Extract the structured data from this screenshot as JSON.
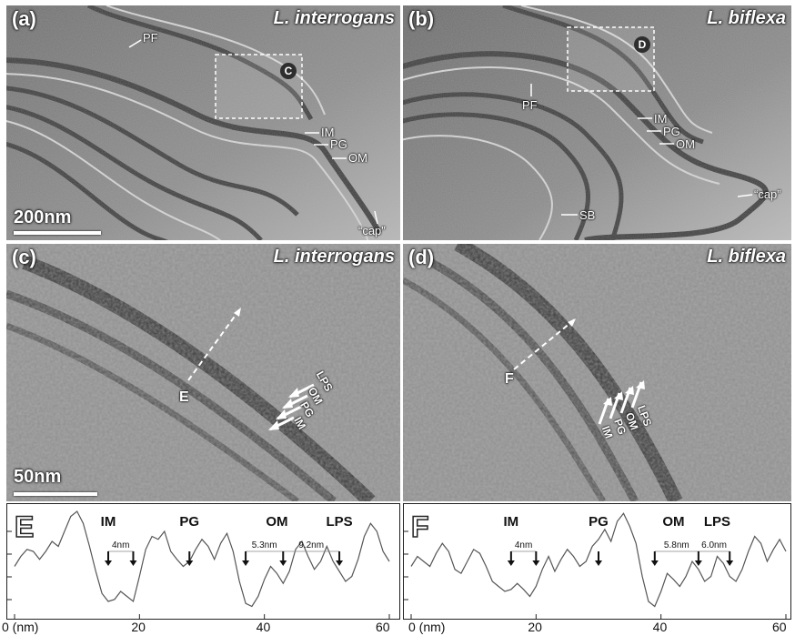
{
  "panels": {
    "a": {
      "label": "(a)",
      "species": "L. interrogans",
      "box_label": "C",
      "scale": "200nm",
      "annotations": {
        "pf": "PF",
        "im": "IM",
        "pg": "PG",
        "om": "OM",
        "cap": "“cap”"
      }
    },
    "b": {
      "label": "(b)",
      "species": "L. biflexa",
      "box_label": "D",
      "annotations": {
        "pf": "PF",
        "im": "IM",
        "pg": "PG",
        "om": "OM",
        "cap": "“cap”",
        "sb": "SB"
      }
    },
    "c": {
      "label": "(c)",
      "species": "L. interrogans",
      "scale": "50nm",
      "line_label": "E",
      "annotations": {
        "lps": "LPS",
        "om": "OM",
        "pg": "PG",
        "im": "IM"
      }
    },
    "d": {
      "label": "(d)",
      "species": "L. biflexa",
      "line_label": "F",
      "annotations": {
        "lps": "LPS",
        "om": "OM",
        "pg": "PG",
        "im": "IM"
      }
    }
  },
  "chart_data": [
    {
      "type": "line",
      "panel_letter": "E",
      "x_tick_labels": [
        "0 (nm)",
        "20",
        "40",
        "60"
      ],
      "xlim": [
        0,
        60
      ],
      "layer_labels": [
        "IM",
        "PG",
        "OM",
        "LPS"
      ],
      "layer_positions": [
        15,
        28,
        42,
        52
      ],
      "arrow_x": [
        15,
        19,
        28,
        37,
        43,
        52
      ],
      "distances": [
        {
          "label": "4nm",
          "from": 15,
          "to": 19
        },
        {
          "label": "5.3nm",
          "from": 37,
          "to": 43
        },
        {
          "label": "9.2nm",
          "from": 43,
          "to": 52
        }
      ],
      "x": [
        0,
        1,
        2,
        3,
        4,
        5,
        6,
        7,
        8,
        9,
        10,
        11,
        12,
        13,
        14,
        15,
        16,
        17,
        18,
        19,
        20,
        21,
        22,
        23,
        24,
        25,
        26,
        27,
        28,
        29,
        30,
        31,
        32,
        33,
        34,
        35,
        36,
        37,
        38,
        39,
        40,
        41,
        42,
        43,
        44,
        45,
        46,
        47,
        48,
        49,
        50,
        51,
        52,
        53,
        54,
        55,
        56,
        57,
        58,
        59,
        60
      ],
      "y": [
        0.45,
        0.55,
        0.62,
        0.6,
        0.52,
        0.6,
        0.7,
        0.65,
        0.8,
        0.95,
        1.0,
        0.88,
        0.65,
        0.4,
        0.18,
        0.1,
        0.12,
        0.2,
        0.15,
        0.1,
        0.35,
        0.62,
        0.75,
        0.72,
        0.8,
        0.6,
        0.52,
        0.45,
        0.5,
        0.62,
        0.72,
        0.65,
        0.52,
        0.68,
        0.78,
        0.6,
        0.3,
        0.08,
        0.05,
        0.15,
        0.32,
        0.45,
        0.38,
        0.28,
        0.4,
        0.62,
        0.7,
        0.55,
        0.42,
        0.5,
        0.65,
        0.5,
        0.4,
        0.3,
        0.35,
        0.52,
        0.75,
        0.88,
        0.8,
        0.6,
        0.5
      ]
    },
    {
      "type": "line",
      "panel_letter": "F",
      "x_tick_labels": [
        "0 (nm)",
        "20",
        "40",
        "60"
      ],
      "xlim": [
        0,
        60
      ],
      "layer_labels": [
        "IM",
        "PG",
        "OM",
        "LPS"
      ],
      "layer_positions": [
        16,
        30,
        42,
        49
      ],
      "arrow_x": [
        16,
        20,
        30,
        39,
        46,
        51
      ],
      "distances": [
        {
          "label": "4nm",
          "from": 16,
          "to": 20
        },
        {
          "label": "5.8nm",
          "from": 39,
          "to": 46
        },
        {
          "label": "6.0nm",
          "from": 46,
          "to": 51
        }
      ],
      "x": [
        0,
        1,
        2,
        3,
        4,
        5,
        6,
        7,
        8,
        9,
        10,
        11,
        12,
        13,
        14,
        15,
        16,
        17,
        18,
        19,
        20,
        21,
        22,
        23,
        24,
        25,
        26,
        27,
        28,
        29,
        30,
        31,
        32,
        33,
        34,
        35,
        36,
        37,
        38,
        39,
        40,
        41,
        42,
        43,
        44,
        45,
        46,
        47,
        48,
        49,
        50,
        51,
        52,
        53,
        54,
        55,
        56,
        57,
        58,
        59,
        60
      ],
      "y": [
        0.45,
        0.55,
        0.5,
        0.45,
        0.58,
        0.68,
        0.6,
        0.42,
        0.38,
        0.5,
        0.62,
        0.58,
        0.45,
        0.3,
        0.25,
        0.2,
        0.22,
        0.28,
        0.22,
        0.15,
        0.25,
        0.42,
        0.55,
        0.4,
        0.52,
        0.62,
        0.55,
        0.45,
        0.5,
        0.65,
        0.72,
        0.82,
        0.7,
        0.9,
        0.98,
        0.85,
        0.68,
        0.35,
        0.1,
        0.05,
        0.2,
        0.38,
        0.32,
        0.25,
        0.35,
        0.5,
        0.42,
        0.3,
        0.35,
        0.55,
        0.48,
        0.35,
        0.3,
        0.42,
        0.6,
        0.75,
        0.68,
        0.5,
        0.62,
        0.72,
        0.6
      ]
    }
  ]
}
